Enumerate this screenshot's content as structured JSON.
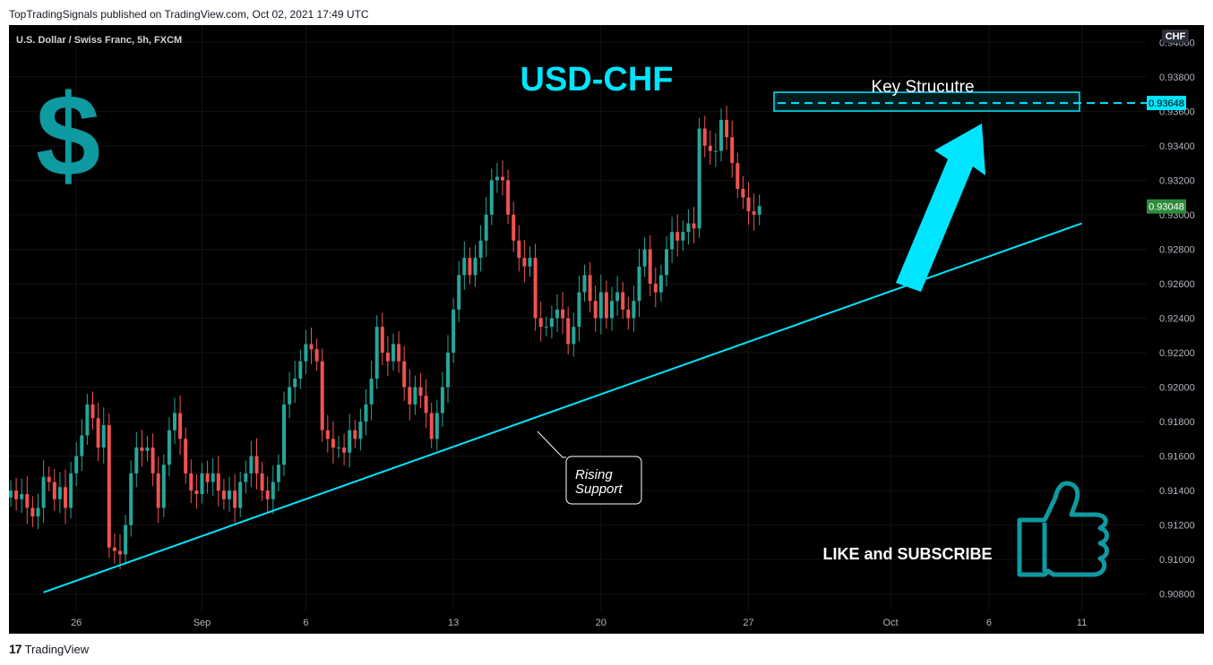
{
  "header": {
    "published": "TopTradingSignals published on TradingView.com, Oct 02, 2021 17:49 UTC"
  },
  "chart_header": {
    "symbol": "U.S. Dollar / Swiss Franc, 5h, FXCM",
    "currency_badge": "CHF"
  },
  "annotations": {
    "pair_title": "USD-CHF",
    "dollar_sign": "$",
    "key_structure": "Key Strucutre",
    "rising_support_line1": "Rising",
    "rising_support_line2": "Support",
    "like_subscribe": "LIKE and SUBSCRIBE"
  },
  "footer": {
    "brand": "TradingView",
    "brand_mark": "17"
  },
  "colors": {
    "up": "#26a69a",
    "down": "#ef5350",
    "accent": "#00e5ff",
    "last_price": "#2e8b3a",
    "dollar": "#0e9aa0"
  },
  "chart_data": {
    "type": "candlestick",
    "symbol": "USDCHF",
    "timeframe": "5h",
    "source": "FXCM",
    "ylim": [
      0.907,
      0.941
    ],
    "y_ticks": [
      "0.94000",
      "0.93800",
      "0.93600",
      "0.93400",
      "0.93200",
      "0.93000",
      "0.92800",
      "0.92600",
      "0.92400",
      "0.92200",
      "0.92000",
      "0.91800",
      "0.91600",
      "0.91400",
      "0.91200",
      "0.91000",
      "0.90800"
    ],
    "x_ticks": [
      {
        "label": "26",
        "index": 12
      },
      {
        "label": "Sep",
        "index": 35
      },
      {
        "label": "6",
        "index": 54
      },
      {
        "label": "13",
        "index": 81
      },
      {
        "label": "20",
        "index": 108
      },
      {
        "label": "27",
        "index": 135
      },
      {
        "label": "Oct",
        "index": 161
      },
      {
        "label": "6",
        "index": 179
      },
      {
        "label": "11",
        "index": 196
      }
    ],
    "closes": [
      0.914,
      0.9135,
      0.9138,
      0.913,
      0.9125,
      0.913,
      0.9148,
      0.9145,
      0.9135,
      0.9142,
      0.913,
      0.915,
      0.916,
      0.9172,
      0.919,
      0.9182,
      0.9165,
      0.9178,
      0.9107,
      0.9105,
      0.9103,
      0.912,
      0.915,
      0.9165,
      0.9163,
      0.9165,
      0.915,
      0.913,
      0.9155,
      0.9175,
      0.9185,
      0.917,
      0.915,
      0.914,
      0.9138,
      0.915,
      0.9145,
      0.915,
      0.914,
      0.9135,
      0.914,
      0.913,
      0.9145,
      0.915,
      0.916,
      0.915,
      0.914,
      0.9135,
      0.9145,
      0.9155,
      0.919,
      0.92,
      0.9205,
      0.9215,
      0.9225,
      0.9222,
      0.9215,
      0.9175,
      0.917,
      0.9165,
      0.9165,
      0.9162,
      0.9175,
      0.917,
      0.918,
      0.919,
      0.9205,
      0.9235,
      0.922,
      0.9215,
      0.9225,
      0.9215,
      0.92,
      0.919,
      0.92,
      0.9195,
      0.9185,
      0.917,
      0.9185,
      0.92,
      0.922,
      0.9245,
      0.9265,
      0.9275,
      0.9265,
      0.9275,
      0.9285,
      0.93,
      0.932,
      0.9322,
      0.932,
      0.93,
      0.9285,
      0.9275,
      0.927,
      0.9275,
      0.924,
      0.9235,
      0.9235,
      0.924,
      0.9245,
      0.924,
      0.9225,
      0.9235,
      0.9255,
      0.9265,
      0.925,
      0.924,
      0.9255,
      0.924,
      0.925,
      0.9255,
      0.9245,
      0.924,
      0.925,
      0.927,
      0.928,
      0.926,
      0.9255,
      0.9265,
      0.928,
      0.929,
      0.9285,
      0.929,
      0.9295,
      0.9292,
      0.935,
      0.934,
      0.9337,
      0.9337,
      0.9355,
      0.9345,
      0.933,
      0.9315,
      0.931,
      0.9302,
      0.93,
      0.9305
    ],
    "series": [
      {
        "name": "Rising Support",
        "type": "trendline",
        "from": {
          "index": 6,
          "value": 0.9081
        },
        "to": {
          "index": 196,
          "value": 0.9295
        }
      },
      {
        "name": "Key Strucutre",
        "type": "horizontal",
        "value": 0.93648
      }
    ],
    "price_labels": [
      {
        "label": "0.93648",
        "value": 0.93648,
        "color": "#00e5ff",
        "text_color": "#000000"
      },
      {
        "label": "0.93048",
        "value": 0.93048,
        "color": "#2e8b3a",
        "text_color": "#ffffff"
      }
    ]
  }
}
